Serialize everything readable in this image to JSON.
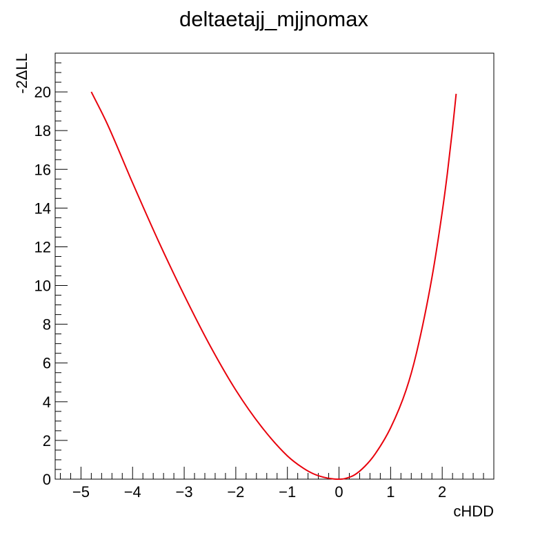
{
  "chart_data": {
    "type": "line",
    "title": "deltaetajj_mjjnomax",
    "xlabel": "cHDD",
    "ylabel": "-2ΔLL",
    "xlim": [
      -5.5,
      3.0
    ],
    "ylim": [
      0,
      22
    ],
    "xticks": [
      "−5",
      "−4",
      "−3",
      "−2",
      "−1",
      "0",
      "1",
      "2"
    ],
    "xtick_values": [
      -5,
      -4,
      -3,
      -2,
      -1,
      0,
      1,
      2
    ],
    "yticks": [
      "0",
      "2",
      "4",
      "6",
      "8",
      "10",
      "12",
      "14",
      "16",
      "18",
      "20"
    ],
    "ytick_values": [
      0,
      2,
      4,
      6,
      8,
      10,
      12,
      14,
      16,
      18,
      20
    ],
    "grid": false,
    "series": [
      {
        "color": "#e8000b",
        "x": [
          -4.8,
          -4.5,
          -4.0,
          -3.5,
          -3.0,
          -2.5,
          -2.0,
          -1.5,
          -1.0,
          -0.7,
          -0.5,
          -0.3,
          -0.1,
          0.0,
          0.1,
          0.3,
          0.5,
          0.7,
          1.0,
          1.3,
          1.5,
          1.8,
          2.0,
          2.1,
          2.2,
          2.27
        ],
        "y": [
          20.0,
          18.4,
          15.3,
          12.3,
          9.5,
          6.9,
          4.6,
          2.7,
          1.2,
          0.58,
          0.28,
          0.1,
          0.01,
          0.0,
          0.02,
          0.22,
          0.66,
          1.3,
          2.65,
          4.6,
          6.5,
          10.4,
          13.8,
          15.8,
          18.1,
          19.9
        ]
      }
    ]
  }
}
